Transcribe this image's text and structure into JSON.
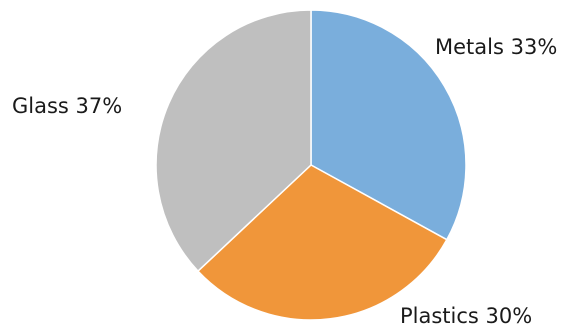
{
  "chart_data": {
    "type": "pie",
    "title": "",
    "slices": [
      {
        "label": "Metals",
        "value": 33,
        "display": "Metals 33%",
        "color": "#7aaedc"
      },
      {
        "label": "Plastics",
        "value": 30,
        "display": "Plastics 30%",
        "color": "#f0963a"
      },
      {
        "label": "Glass",
        "value": 37,
        "display": "Glass 37%",
        "color": "#bfbfbf"
      }
    ],
    "legend": "none",
    "start_angle": "12 o'clock",
    "direction": "clockwise"
  }
}
